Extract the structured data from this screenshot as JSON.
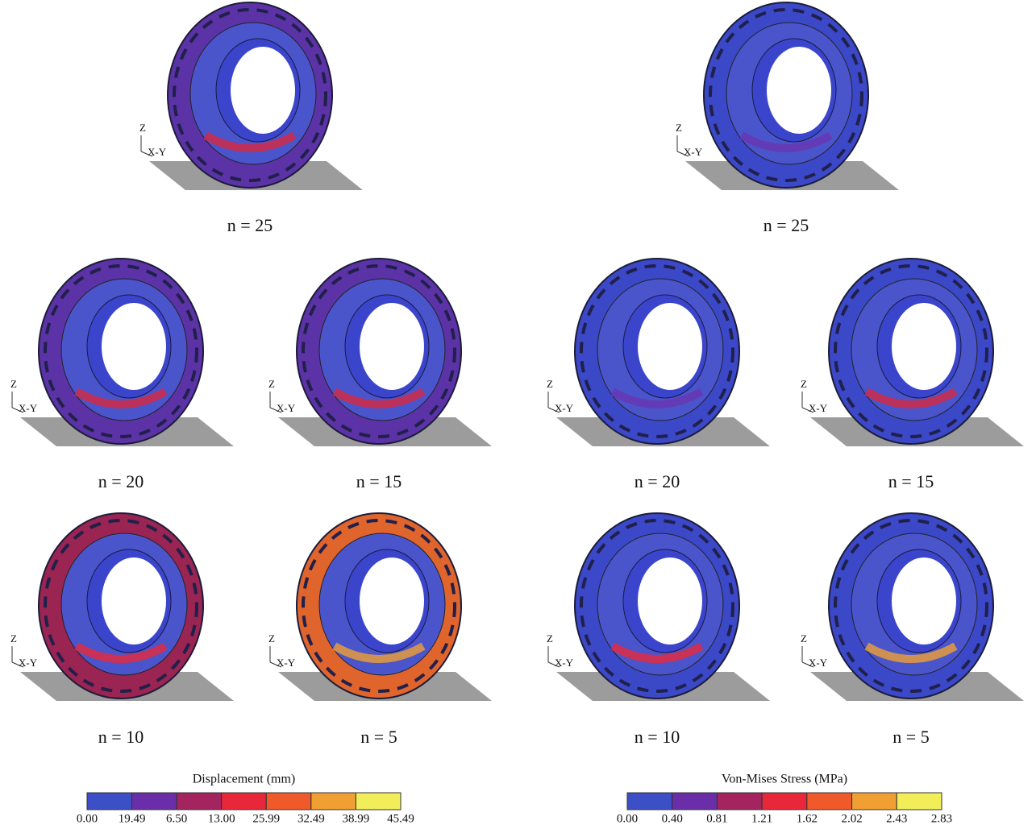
{
  "panels": [
    {
      "caption": "n = 25"
    },
    {
      "caption": "n = 25"
    },
    {
      "caption": "n = 20"
    },
    {
      "caption": "n = 15"
    },
    {
      "caption": "n = 20"
    },
    {
      "caption": "n = 15"
    },
    {
      "caption": "n = 10"
    },
    {
      "caption": "n = 5"
    },
    {
      "caption": "n = 10"
    },
    {
      "caption": "n = 5"
    }
  ],
  "triad": {
    "z": "Z",
    "xy": "X-Y"
  },
  "legends": [
    {
      "title": "Displacement (mm)",
      "labels": [
        "0.00",
        "19.49",
        "6.50",
        "13.00",
        "25.99",
        "32.49",
        "38.99",
        "45.49"
      ],
      "colors": [
        "#3d4fc6",
        "#6a2fa8",
        "#a3245e",
        "#e8283a",
        "#f05a2a",
        "#f0a032",
        "#f2ee5a"
      ]
    },
    {
      "title": "Von-Mises Stress (MPa)",
      "labels": [
        "0.00",
        "0.40",
        "0.81",
        "1.21",
        "1.62",
        "2.02",
        "2.43",
        "2.83"
      ],
      "colors": [
        "#3d4fc6",
        "#6a2fa8",
        "#a3245e",
        "#e8283a",
        "#f05a2a",
        "#f0a032",
        "#f2ee5a"
      ]
    }
  ]
}
